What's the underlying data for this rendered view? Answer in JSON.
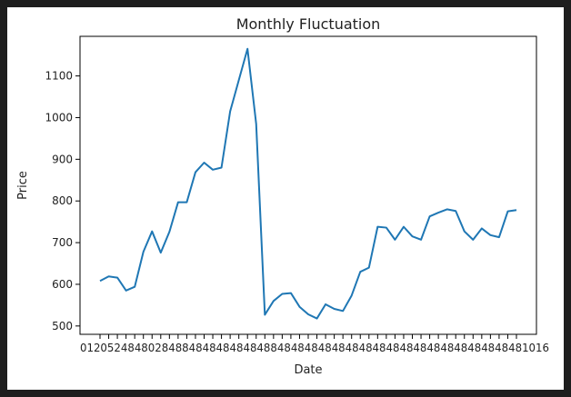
{
  "chart_data": {
    "type": "line",
    "title": "Monthly Fluctuation",
    "xlabel": "Date",
    "ylabel": "Price",
    "ylim": [
      480,
      1195
    ],
    "yticks": [
      500,
      600,
      700,
      800,
      900,
      1000,
      1100
    ],
    "x_tick_text": "012052484802848848484848484884848484848484848484848484848484848481016",
    "grid": false,
    "line_color": "#1f77b4",
    "series": [
      {
        "values": [
          608,
          619,
          616,
          585,
          594,
          678,
          727,
          676,
          726,
          797,
          797,
          869,
          892,
          875,
          880,
          1015,
          1090,
          1165,
          985,
          527,
          560,
          577,
          579,
          546,
          528,
          518,
          552,
          541,
          536,
          573,
          630,
          640,
          738,
          736,
          707,
          738,
          715,
          707,
          763,
          772,
          780,
          776,
          727,
          707,
          734,
          718,
          713,
          775,
          778
        ]
      }
    ]
  }
}
